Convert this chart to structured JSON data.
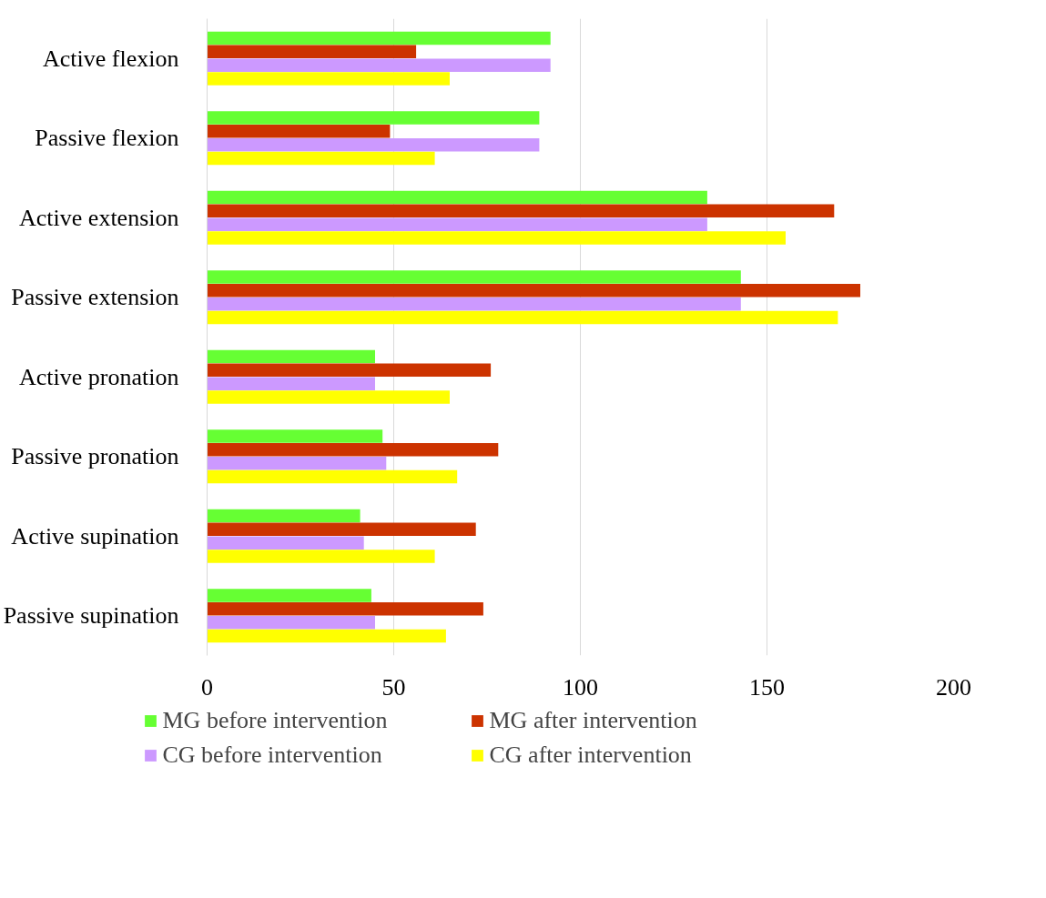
{
  "chart_data": {
    "type": "bar",
    "orientation": "horizontal",
    "categories": [
      "Active flexion",
      "Passive flexion",
      "Active extension",
      "Passive extension",
      "Active pronation",
      "Passive pronation",
      "Active supination",
      "Passive supination"
    ],
    "series": [
      {
        "name": "MG before intervention",
        "color": "#66ff33",
        "values": [
          92,
          89,
          134,
          143,
          45,
          47,
          41,
          44
        ]
      },
      {
        "name": "MG after intervention",
        "color": "#cc3300",
        "values": [
          56,
          49,
          168,
          175,
          76,
          78,
          72,
          74
        ]
      },
      {
        "name": "CG before intervention",
        "color": "#cc99ff",
        "values": [
          92,
          89,
          134,
          143,
          45,
          48,
          42,
          45
        ]
      },
      {
        "name": "CG after intervention",
        "color": "#ffff00",
        "values": [
          65,
          61,
          155,
          169,
          65,
          67,
          61,
          64
        ]
      }
    ],
    "xlim": [
      0,
      200
    ],
    "xticks": [
      0,
      50,
      100,
      150,
      200
    ],
    "grid": "x",
    "legend": "bottom"
  }
}
